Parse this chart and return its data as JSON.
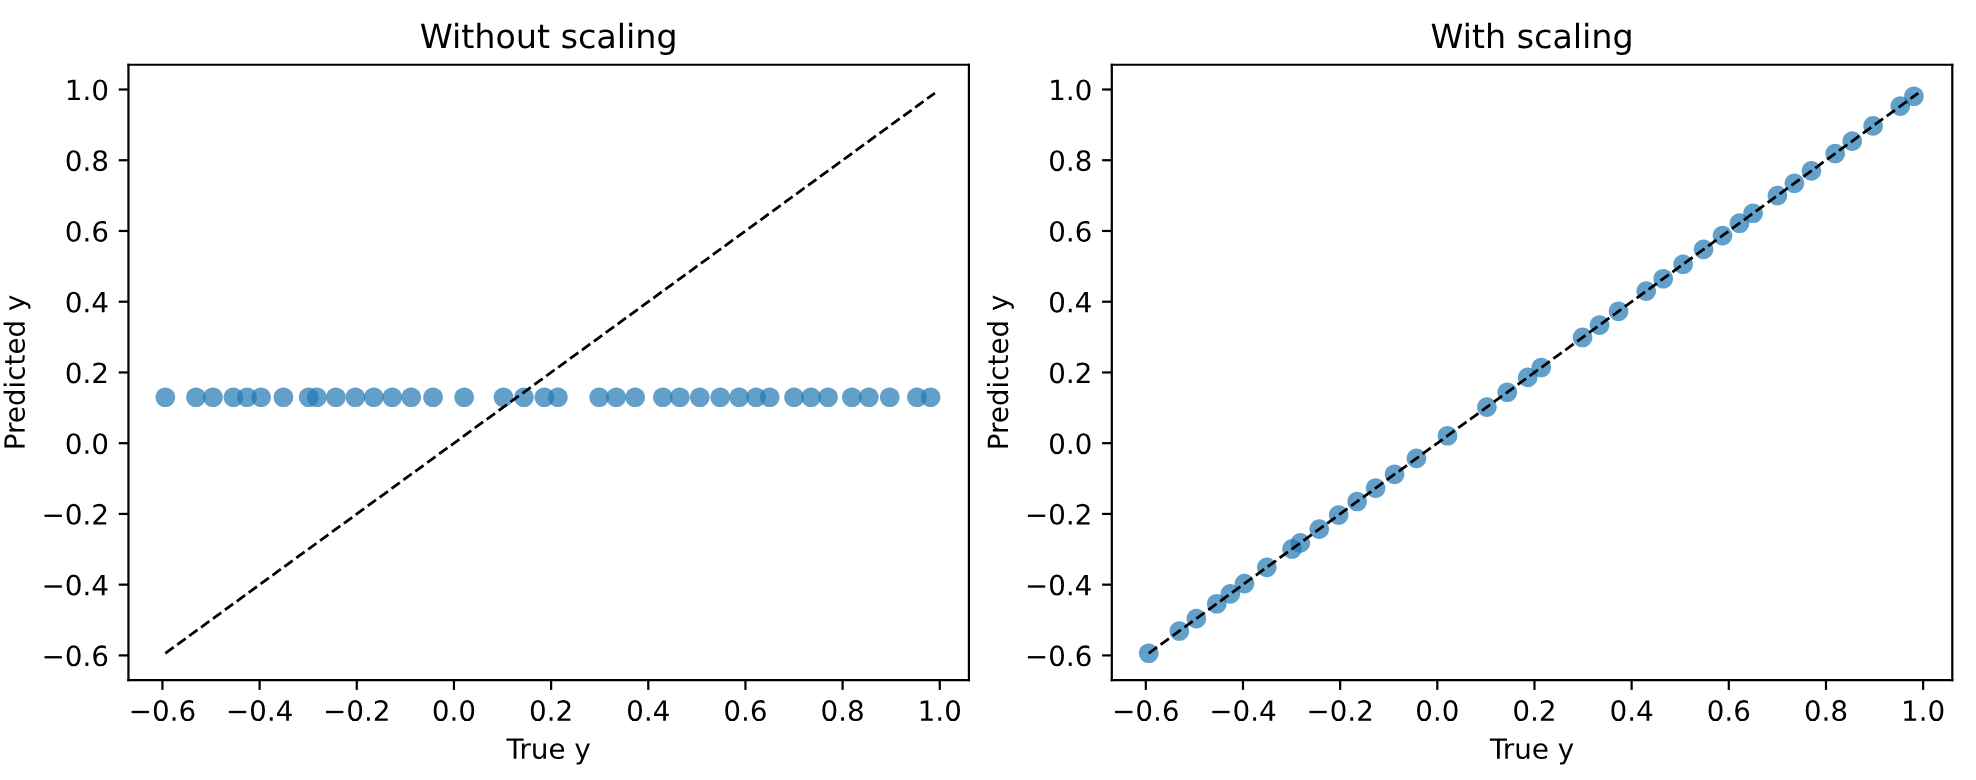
{
  "chart_data": [
    {
      "type": "scatter",
      "title": "Without scaling",
      "xlabel": "True y",
      "ylabel": "Predicted y",
      "xlim": [
        -0.67,
        1.06
      ],
      "ylim": [
        -0.67,
        1.07
      ],
      "xticks": [
        {
          "value": -0.6,
          "label": "−0.6"
        },
        {
          "value": -0.4,
          "label": "−0.4"
        },
        {
          "value": -0.2,
          "label": "−0.2"
        },
        {
          "value": 0.0,
          "label": "0.0"
        },
        0.2,
        0.4,
        0.6,
        0.8,
        {
          "value": 1.0,
          "label": "1.0"
        }
      ],
      "yticks": [
        {
          "value": -0.6,
          "label": "−0.6"
        },
        {
          "value": -0.4,
          "label": "−0.4"
        },
        {
          "value": -0.2,
          "label": "−0.2"
        },
        {
          "value": 0.0,
          "label": "0.0"
        },
        0.2,
        0.4,
        0.6,
        0.8,
        {
          "value": 1.0,
          "label": "1.0"
        }
      ],
      "grid": false,
      "series": [
        {
          "marker": "circle",
          "color": "#1f77b4",
          "x": [
            -0.594,
            -0.531,
            -0.496,
            -0.454,
            -0.426,
            -0.397,
            -0.351,
            -0.299,
            -0.282,
            -0.243,
            -0.203,
            -0.165,
            -0.127,
            -0.088,
            -0.043,
            0.021,
            0.102,
            0.144,
            0.186,
            0.214,
            0.299,
            0.334,
            0.373,
            0.43,
            0.465,
            0.506,
            0.548,
            0.587,
            0.622,
            0.65,
            0.7,
            0.735,
            0.77,
            0.819,
            0.854,
            0.897,
            0.953,
            0.981
          ],
          "values": [
            0.13,
            0.13,
            0.13,
            0.13,
            0.13,
            0.13,
            0.13,
            0.13,
            0.13,
            0.13,
            0.13,
            0.13,
            0.13,
            0.13,
            0.13,
            0.13,
            0.13,
            0.13,
            0.13,
            0.13,
            0.13,
            0.13,
            0.13,
            0.13,
            0.13,
            0.13,
            0.13,
            0.13,
            0.13,
            0.13,
            0.13,
            0.13,
            0.13,
            0.13,
            0.13,
            0.13,
            0.13,
            0.13
          ]
        },
        {
          "type": "line",
          "color": "#000000",
          "line_style": "dashed",
          "x": [
            -0.594,
            0.99
          ],
          "values": [
            -0.594,
            0.99
          ]
        }
      ]
    },
    {
      "type": "scatter",
      "title": "With scaling",
      "xlabel": "True y",
      "ylabel": "Predicted y",
      "xlim": [
        -0.67,
        1.06
      ],
      "ylim": [
        -0.67,
        1.07
      ],
      "xticks": [
        {
          "value": -0.6,
          "label": "−0.6"
        },
        {
          "value": -0.4,
          "label": "−0.4"
        },
        {
          "value": -0.2,
          "label": "−0.2"
        },
        {
          "value": 0.0,
          "label": "0.0"
        },
        0.2,
        0.4,
        0.6,
        0.8,
        {
          "value": 1.0,
          "label": "1.0"
        }
      ],
      "yticks": [
        {
          "value": -0.6,
          "label": "−0.6"
        },
        {
          "value": -0.4,
          "label": "−0.4"
        },
        {
          "value": -0.2,
          "label": "−0.2"
        },
        {
          "value": 0.0,
          "label": "0.0"
        },
        0.2,
        0.4,
        0.6,
        0.8,
        {
          "value": 1.0,
          "label": "1.0"
        }
      ],
      "grid": false,
      "series": [
        {
          "marker": "circle",
          "color": "#1f77b4",
          "x": [
            -0.594,
            -0.531,
            -0.496,
            -0.454,
            -0.426,
            -0.397,
            -0.351,
            -0.299,
            -0.282,
            -0.243,
            -0.203,
            -0.165,
            -0.127,
            -0.088,
            -0.043,
            0.021,
            0.102,
            0.144,
            0.186,
            0.214,
            0.299,
            0.334,
            0.373,
            0.43,
            0.465,
            0.506,
            0.548,
            0.587,
            0.622,
            0.65,
            0.7,
            0.735,
            0.77,
            0.819,
            0.854,
            0.897,
            0.953,
            0.981
          ],
          "values": [
            -0.594,
            -0.531,
            -0.496,
            -0.454,
            -0.426,
            -0.397,
            -0.351,
            -0.299,
            -0.282,
            -0.243,
            -0.203,
            -0.165,
            -0.127,
            -0.088,
            -0.043,
            0.021,
            0.102,
            0.144,
            0.186,
            0.214,
            0.299,
            0.334,
            0.373,
            0.43,
            0.465,
            0.506,
            0.548,
            0.587,
            0.622,
            0.65,
            0.7,
            0.735,
            0.77,
            0.819,
            0.854,
            0.897,
            0.953,
            0.981
          ]
        },
        {
          "type": "line",
          "color": "#000000",
          "line_style": "dashed",
          "x": [
            -0.594,
            0.99
          ],
          "values": [
            -0.594,
            0.99
          ]
        }
      ]
    }
  ]
}
